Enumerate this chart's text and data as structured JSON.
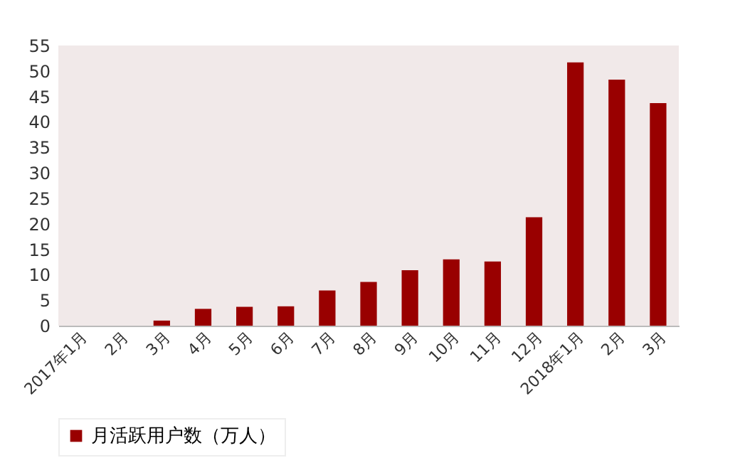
{
  "chart_data": {
    "type": "bar",
    "categories": [
      "2017年1月",
      "2月",
      "3月",
      "4月",
      "5月",
      "6月",
      "7月",
      "8月",
      "9月",
      "10月",
      "11月",
      "12月",
      "2018年1月",
      "2月",
      "3月"
    ],
    "series": [
      {
        "name": "月活跃用户数（万人）",
        "color": "#990000",
        "values": [
          0,
          0,
          1,
          3.3,
          3.7,
          3.8,
          6.9,
          8.6,
          10.9,
          13,
          12.6,
          21.3,
          51.7,
          48.3,
          43.7
        ]
      }
    ],
    "ylim": [
      0,
      55
    ],
    "yticks": [
      0,
      5,
      10,
      15,
      20,
      25,
      30,
      35,
      40,
      45,
      50,
      55
    ],
    "grid": false,
    "legend": "bottom"
  }
}
